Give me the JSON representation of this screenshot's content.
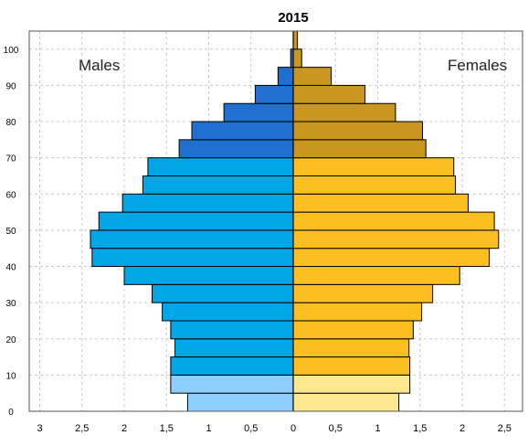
{
  "chart_data": {
    "type": "bar",
    "title": "2015",
    "orientation": "horizontal-population-pyramid",
    "age_tick_labels": [
      "0",
      "10",
      "20",
      "30",
      "40",
      "50",
      "60",
      "70",
      "80",
      "90",
      "100"
    ],
    "age_groups": [
      "0-4",
      "5-9",
      "10-14",
      "15-19",
      "20-24",
      "25-29",
      "30-34",
      "35-39",
      "40-44",
      "45-49",
      "50-54",
      "55-59",
      "60-64",
      "65-69",
      "70-74",
      "75-79",
      "80-84",
      "85-89",
      "90-94",
      "95-99",
      "100+"
    ],
    "x_ticks": [
      "3",
      "2,5",
      "2",
      "1,5",
      "1",
      "0,5",
      "0",
      "0,5",
      "1",
      "1,5",
      "2",
      "2,5"
    ],
    "xlim": [
      -3,
      3
    ],
    "grid": true,
    "series": [
      {
        "name": "Males",
        "color_bands": [
          "#1f6fd0",
          "#00a6e6",
          "#2a8ee0",
          "#8ecfff"
        ],
        "values": [
          1.25,
          1.45,
          1.45,
          1.4,
          1.45,
          1.55,
          1.67,
          2.0,
          2.38,
          2.4,
          2.3,
          2.02,
          1.78,
          1.72,
          1.35,
          1.2,
          0.82,
          0.45,
          0.18,
          0.03,
          0.0
        ]
      },
      {
        "name": "Females",
        "color_bands": [
          "#c9961f",
          "#fbbf22",
          "#fbbf22",
          "#fde890"
        ],
        "values": [
          1.25,
          1.38,
          1.38,
          1.37,
          1.42,
          1.52,
          1.65,
          1.97,
          2.32,
          2.43,
          2.38,
          2.07,
          1.92,
          1.9,
          1.57,
          1.53,
          1.21,
          0.85,
          0.45,
          0.1,
          0.05
        ]
      }
    ],
    "legend": {
      "males": "Males",
      "females": "Females"
    }
  }
}
